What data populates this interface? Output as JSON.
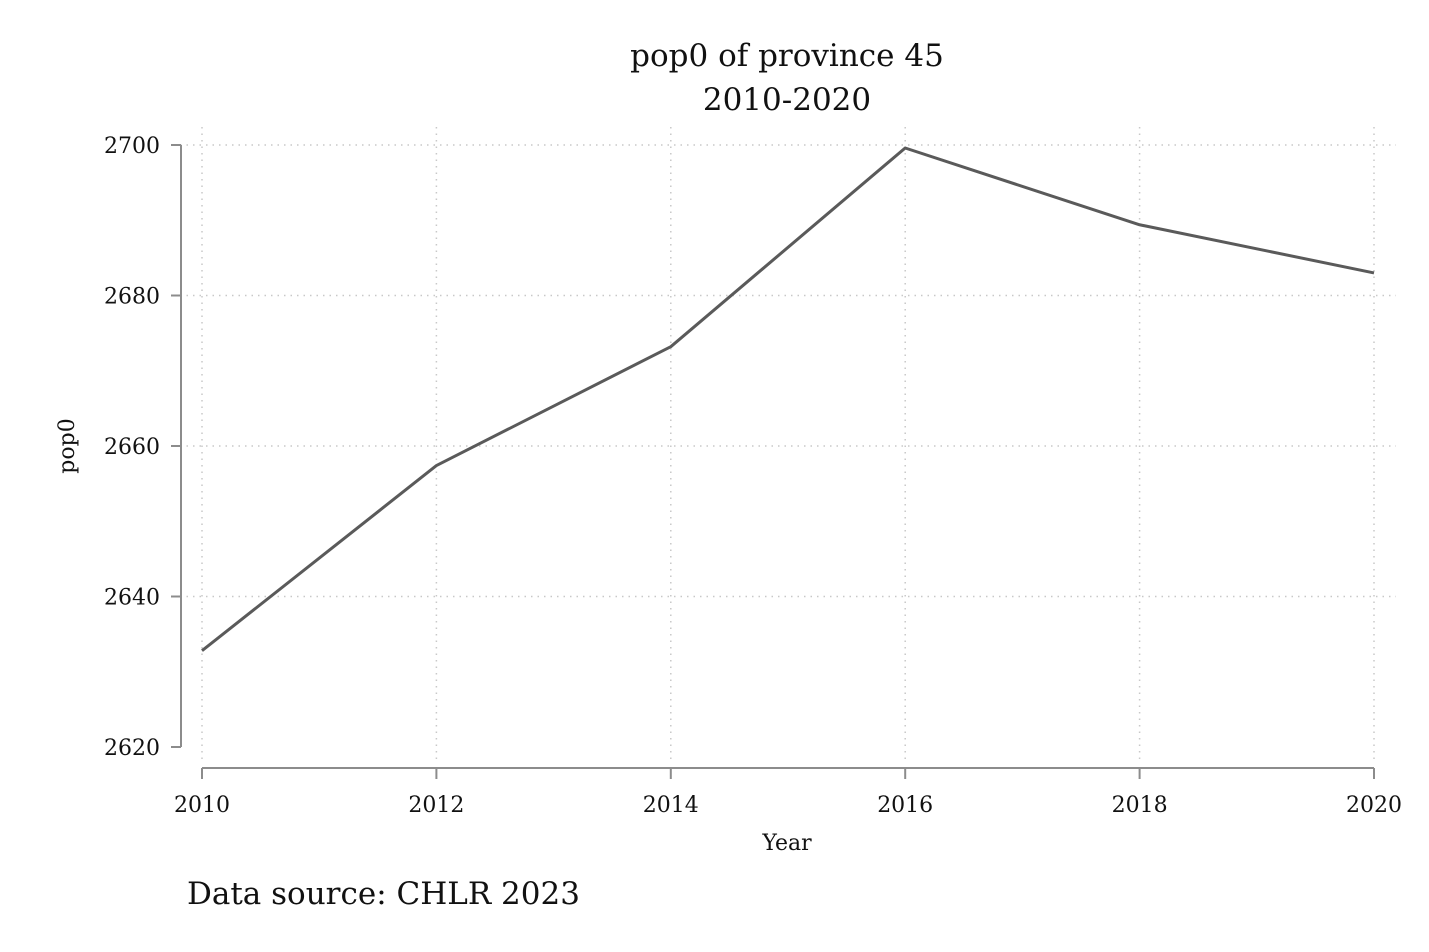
{
  "chart_data": {
    "type": "line",
    "title": "pop0 of province 45",
    "subtitle": "2010-2020",
    "xlabel": "Year",
    "ylabel": "pop0",
    "x": [
      2010,
      2012,
      2014,
      2016,
      2018,
      2020
    ],
    "xticks": [
      "2010",
      "2012",
      "2014",
      "2016",
      "2018",
      "2020"
    ],
    "yticks": [
      "2620",
      "2640",
      "2660",
      "2680",
      "2700"
    ],
    "xlim": [
      2010,
      2020
    ],
    "ylim": [
      2620,
      2700
    ],
    "series": [
      {
        "values": [
          2632.8,
          2657.4,
          2673.2,
          2699.6,
          2689.4,
          2683.0
        ],
        "color": "#5a5a5a"
      }
    ],
    "grid": true,
    "source_note": "Data source: CHLR 2023"
  }
}
